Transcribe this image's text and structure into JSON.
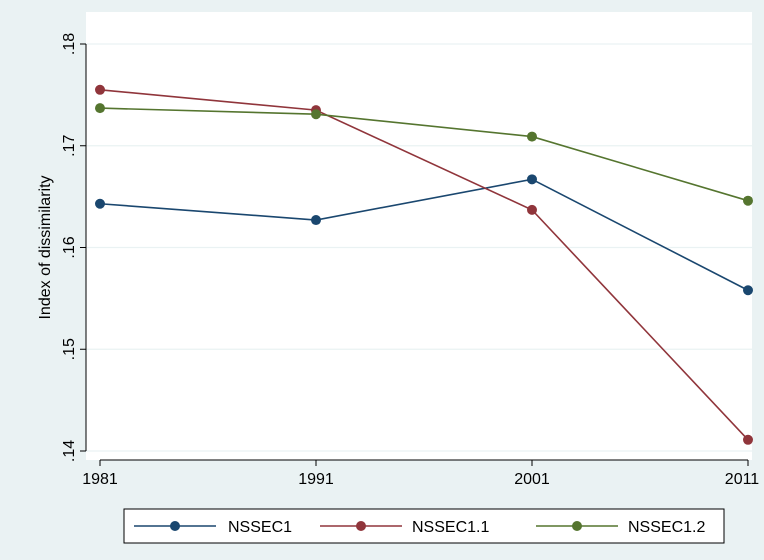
{
  "chart_data": {
    "type": "line",
    "title": "",
    "xlabel": "",
    "ylabel": "Index of dissimilarity",
    "x": [
      1981,
      1991,
      2001,
      2011
    ],
    "x_tick_labels": [
      "1981",
      "1991",
      "2001",
      "2011"
    ],
    "y_ticks": [
      0.14,
      0.15,
      0.16,
      0.17,
      0.18
    ],
    "y_tick_labels": [
      ".14",
      ".15",
      ".16",
      ".17",
      ".18"
    ],
    "xlim": [
      1981,
      2011
    ],
    "ylim": [
      0.14,
      0.18
    ],
    "grid": "horizontal",
    "legend_position": "bottom",
    "series": [
      {
        "name": "NSSEC1",
        "color": "#1a476f",
        "values": [
          0.1643,
          0.1627,
          0.1667,
          0.1558
        ]
      },
      {
        "name": "NSSEC1.1",
        "color": "#90353b",
        "values": [
          0.1755,
          0.1735,
          0.1637,
          0.1411
        ]
      },
      {
        "name": "NSSEC1.2",
        "color": "#55752f",
        "values": [
          0.1737,
          0.1731,
          0.1709,
          0.1646
        ]
      }
    ],
    "colors": {
      "background": "#eaf2f3",
      "plot_background": "#ffffff",
      "grid": "#eaf2f3"
    }
  }
}
